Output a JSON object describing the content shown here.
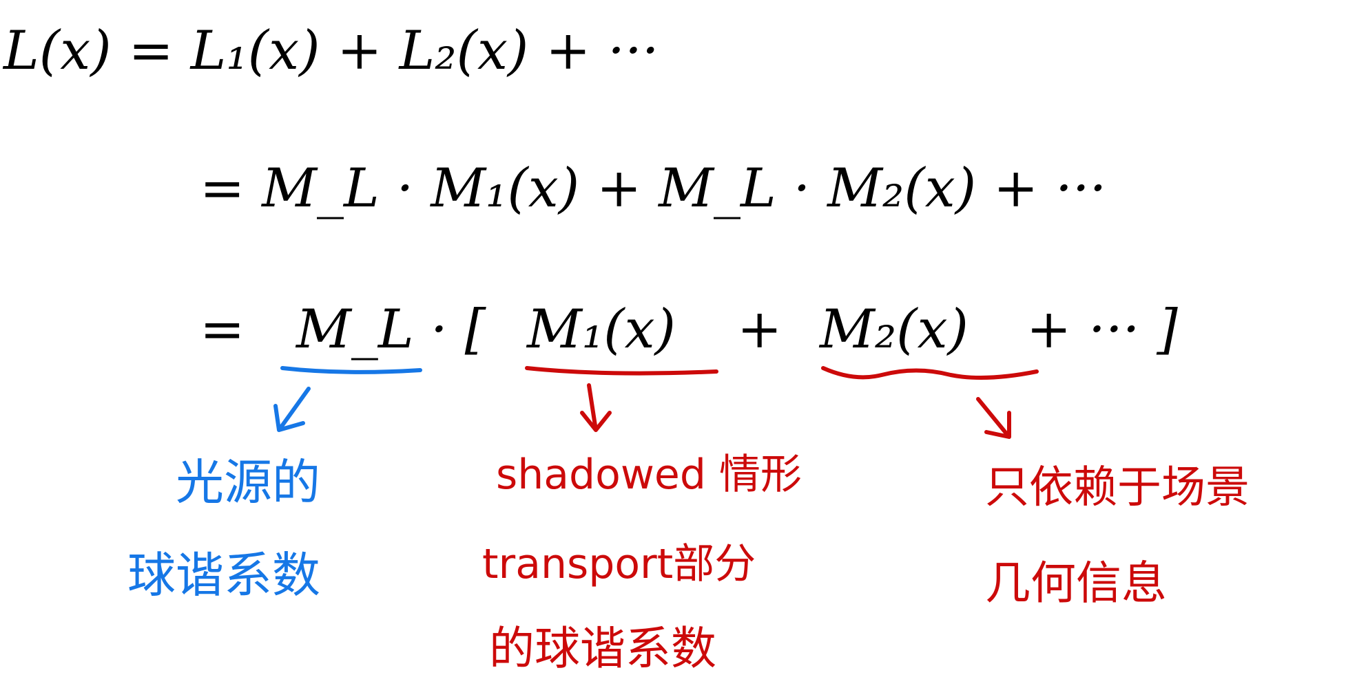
{
  "equations": {
    "line1": "L(x) = L₁(x) + L₂(x) + ···",
    "line2": "= M_L · M₁(x) + M_L · M₂(x) + ···",
    "line3_prefix": "=",
    "line3_ml": "M_L",
    "line3_dot_bracket": "· [",
    "line3_m1": "M₁(x)",
    "line3_plus1": "+",
    "line3_m2": "M₂(x)",
    "line3_rest": "+ ··· ]"
  },
  "annotations": {
    "blue": {
      "line1": "光源的",
      "line2": "球谐系数"
    },
    "red_middle": {
      "line1": "shadowed 情形",
      "line2": "transport部分",
      "line3": "的球谐系数"
    },
    "red_right": {
      "line1": "只依赖于场景",
      "line2": "几何信息"
    }
  },
  "colors": {
    "ink": "#000000",
    "blue": "#1677e6",
    "red": "#cc0a0a"
  }
}
